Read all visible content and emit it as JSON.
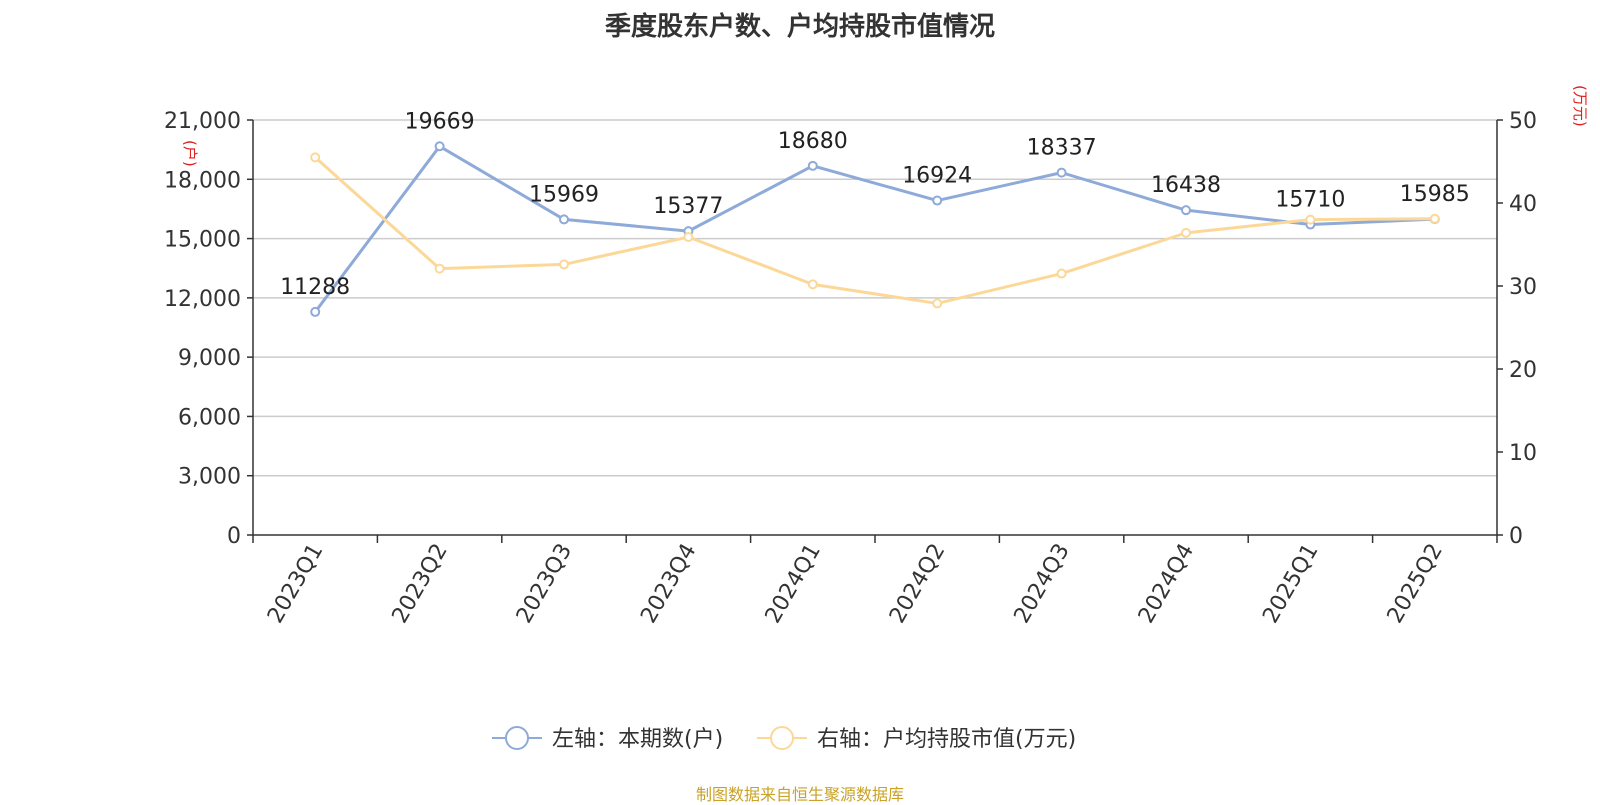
{
  "chart_data": {
    "type": "line",
    "title": "季度股东户数、户均持股市值情况",
    "categories": [
      "2023Q1",
      "2023Q2",
      "2023Q3",
      "2023Q4",
      "2024Q1",
      "2024Q2",
      "2024Q3",
      "2024Q4",
      "2025Q1",
      "2025Q2"
    ],
    "y_left": {
      "unit_label": "(户)",
      "ylim": [
        0,
        21000
      ],
      "ticks": [
        "0",
        "3,000",
        "6,000",
        "9,000",
        "12,000",
        "15,000",
        "18,000",
        "21,000"
      ]
    },
    "y_right": {
      "unit_label": "(万元)",
      "ylim": [
        0,
        50
      ],
      "ticks": [
        "0",
        "10",
        "20",
        "30",
        "40",
        "50"
      ]
    },
    "series": [
      {
        "name": "左轴：本期数(户)",
        "axis": "left",
        "color": "#8eaad8",
        "values": [
          11288,
          19669,
          15969,
          15377,
          18680,
          16924,
          18337,
          16438,
          15710,
          15985
        ],
        "labels": [
          "11288",
          "19669",
          "15969",
          "15377",
          "18680",
          "16924",
          "18337",
          "16438",
          "15710",
          "15985"
        ]
      },
      {
        "name": "右轴：户均持股市值(万元)",
        "axis": "right",
        "color": "#fcd898",
        "values": [
          45.5,
          32.1,
          32.6,
          35.9,
          30.2,
          27.9,
          31.5,
          36.4,
          38.0,
          38.1
        ]
      }
    ],
    "grid": true,
    "legend_position": "bottom",
    "unit_label_color": "#e02020",
    "source": "制图数据来自恒生聚源数据库"
  }
}
